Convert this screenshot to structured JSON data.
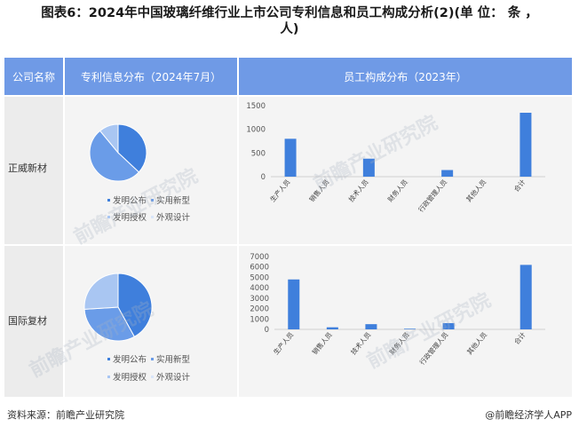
{
  "title_line1": "图表6：2024年中国玻璃纤维行业上市公司专利信息和员工构成分析(2)(单 位： 条 ，",
  "title_line2": "人)",
  "headers": {
    "company": "公司名称",
    "patent": "专利信息分布（2024年7月）",
    "staff": "员工构成分布（2023年）"
  },
  "rows": [
    {
      "company": "正威新材",
      "pie": [
        0.37,
        0.52,
        0.11,
        0.0
      ],
      "bars": [
        800,
        0,
        380,
        0,
        140,
        0,
        1350
      ],
      "ymax": 1500,
      "yticks": [
        "1500",
        "1000",
        "500",
        "0"
      ]
    },
    {
      "company": "国际复材",
      "pie": [
        0.42,
        0.32,
        0.26,
        0.0
      ],
      "bars": [
        4800,
        200,
        500,
        60,
        600,
        0,
        6200
      ],
      "ymax": 7000,
      "yticks": [
        "7000",
        "6000",
        "5000",
        "4000",
        "3000",
        "2000",
        "1000",
        "0"
      ]
    }
  ],
  "legend": {
    "invention_publish": "发明公布",
    "utility_model": "实用新型",
    "invention_grant": "发明授权",
    "design": "外观设计"
  },
  "categories": [
    "生产人员",
    "销售人员",
    "技术人员",
    "财务人员",
    "行政管理人员",
    "其他人员",
    "合计"
  ],
  "colors": {
    "header": "#6f9ae6",
    "bar": "#3f7fdc",
    "pie": [
      "#3f7fdc",
      "#6a9ce8",
      "#a9c6f2",
      "#d9e6fa"
    ]
  },
  "watermark": "前瞻产业研究院",
  "footer": {
    "source": "资料来源：前瞻产业研究院",
    "brand": "@前瞻经济学人APP"
  }
}
